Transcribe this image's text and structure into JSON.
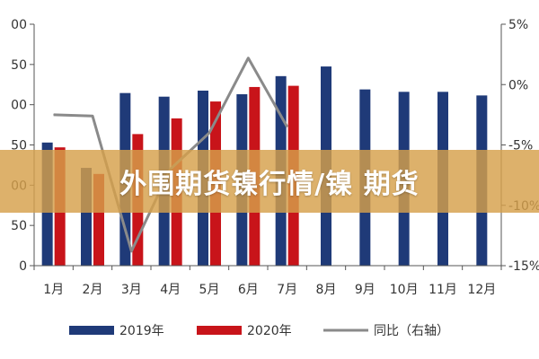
{
  "chart_data": {
    "type": "bar",
    "categories": [
      "1月",
      "2月",
      "3月",
      "4月",
      "5月",
      "6月",
      "7月",
      "8月",
      "9月",
      "10月",
      "11月",
      "12月"
    ],
    "series": [
      {
        "name": "2019年",
        "kind": "bar",
        "axis": "left",
        "values": [
          102,
          81,
          143,
          140,
          145,
          142,
          157,
          165,
          146,
          144,
          144,
          141
        ]
      },
      {
        "name": "2020年",
        "kind": "bar",
        "axis": "left",
        "values": [
          98,
          76,
          109,
          122,
          136,
          148,
          149,
          null,
          null,
          null,
          null,
          null
        ]
      },
      {
        "name": "同比（右轴）",
        "kind": "line",
        "axis": "right",
        "values": [
          -2.5,
          -2.6,
          -13.8,
          -7.0,
          -4.0,
          2.2,
          -3.5,
          null,
          null,
          null,
          null,
          null
        ]
      }
    ],
    "left_ticks": [
      "0",
      "50",
      "00",
      "50",
      "00",
      "50",
      "00"
    ],
    "right_ticks": [
      "-15%",
      "-10%",
      "-5%",
      "0%",
      "5%"
    ],
    "ylim_left": [
      0,
      200
    ],
    "ylim_right": [
      -15,
      5
    ],
    "colors": {
      "2019": "#1f3a78",
      "2020": "#c8141a",
      "line": "#8a8a8a"
    }
  },
  "banner": {
    "text": "外围期货镍行情/镍 期货"
  }
}
